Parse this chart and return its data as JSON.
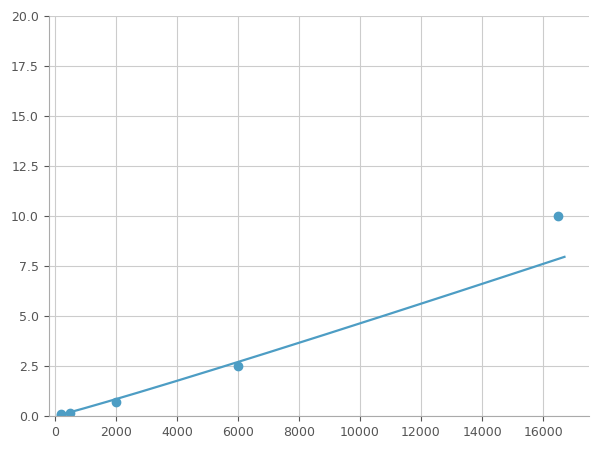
{
  "x_points": [
    200,
    500,
    1000,
    2000,
    6000,
    16500
  ],
  "y_points": [
    0.1,
    0.18,
    0.35,
    0.7,
    2.5,
    10.0
  ],
  "marked_points_x": [
    200,
    500,
    2000,
    6000,
    16500
  ],
  "marked_points_y": [
    0.1,
    0.18,
    0.7,
    2.5,
    10.0
  ],
  "line_color": "#4d9dc4",
  "marker_color": "#4d9dc4",
  "background_color": "#ffffff",
  "grid_color": "#cccccc",
  "xlim": [
    -200,
    17500
  ],
  "ylim": [
    0,
    20
  ],
  "xticks": [
    0,
    2000,
    4000,
    6000,
    8000,
    10000,
    12000,
    14000,
    16000
  ],
  "yticks": [
    0.0,
    2.5,
    5.0,
    7.5,
    10.0,
    12.5,
    15.0,
    17.5,
    20.0
  ],
  "marker_size": 6,
  "line_width": 1.6
}
